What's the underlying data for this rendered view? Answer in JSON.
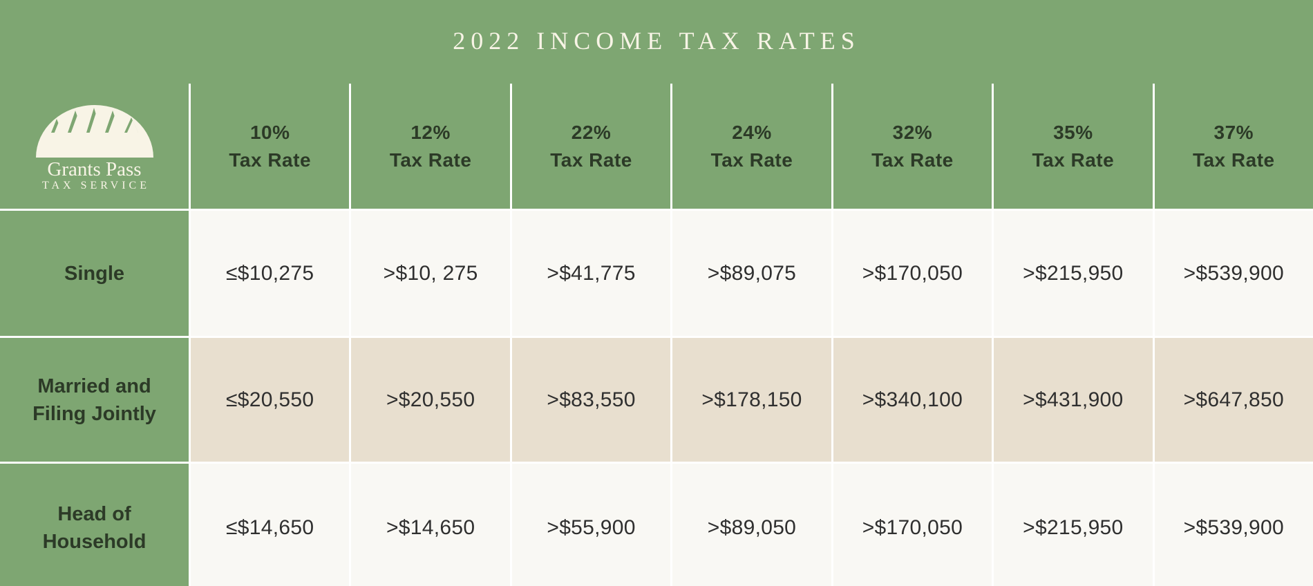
{
  "title": "2022 INCOME TAX RATES",
  "logo": {
    "icon": "tree-dome-logo",
    "name": "Grants Pass",
    "subtitle": "TAX SERVICE"
  },
  "colors": {
    "header_green": "#7ea672",
    "row_light": "#f9f8f4",
    "row_tan": "#e8dfcf",
    "text_dark": "#2c3a27",
    "logo_cream": "#f8f4e6"
  },
  "columns": [
    {
      "rate": "10%",
      "label": "Tax Rate"
    },
    {
      "rate": "12%",
      "label": "Tax Rate"
    },
    {
      "rate": "22%",
      "label": "Tax Rate"
    },
    {
      "rate": "24%",
      "label": "Tax Rate"
    },
    {
      "rate": "32%",
      "label": "Tax Rate"
    },
    {
      "rate": "35%",
      "label": "Tax Rate"
    },
    {
      "rate": "37%",
      "label": "Tax Rate"
    }
  ],
  "rows": [
    {
      "label": "Single",
      "values": [
        "≤$10,275",
        ">$10, 275",
        ">$41,775",
        ">$89,075",
        ">$170,050",
        ">$215,950",
        ">$539,900"
      ]
    },
    {
      "label": "Married and Filing Jointly",
      "values": [
        "≤$20,550",
        ">$20,550",
        ">$83,550",
        ">$178,150",
        ">$340,100",
        ">$431,900",
        ">$647,850"
      ]
    },
    {
      "label": "Head of Household",
      "values": [
        "≤$14,650",
        ">$14,650",
        ">$55,900",
        ">$89,050",
        ">$170,050",
        ">$215,950",
        ">$539,900"
      ]
    }
  ]
}
